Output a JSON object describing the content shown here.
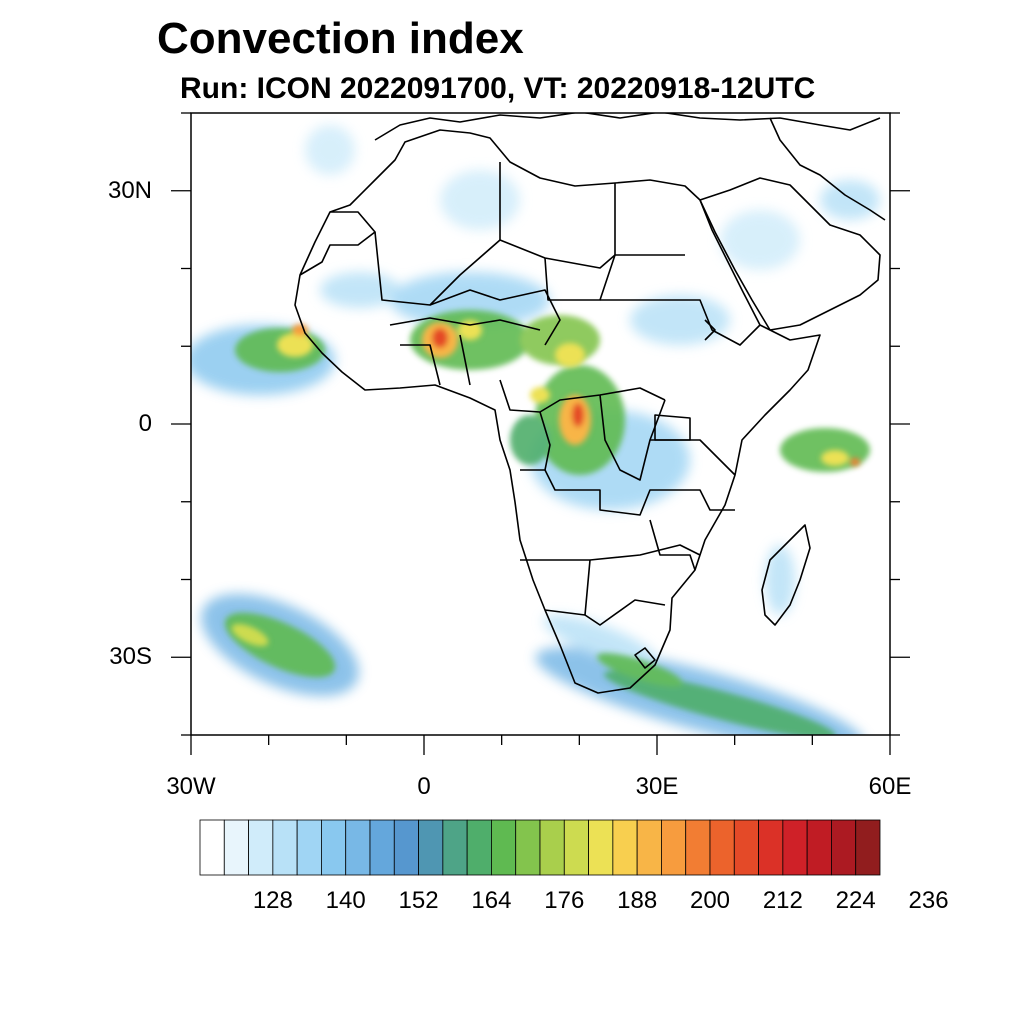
{
  "title": "Convection index",
  "subtitle": "Run: ICON 2022091700,  VT: 20220918-12UTC",
  "map": {
    "lon_range": [
      -30,
      60
    ],
    "lat_range": [
      -40,
      40
    ],
    "lon_ticks": [
      {
        "value": -30,
        "label": "30W"
      },
      {
        "value": 0,
        "label": "0"
      },
      {
        "value": 30,
        "label": "30E"
      },
      {
        "value": 60,
        "label": "60E"
      }
    ],
    "lat_ticks": [
      {
        "value": 30,
        "label": "30N"
      },
      {
        "value": 0,
        "label": "0"
      },
      {
        "value": -30,
        "label": "30S"
      }
    ]
  },
  "colorbar": {
    "colors": [
      "#ffffff",
      "#e8f5fc",
      "#d0ecfa",
      "#b8e1f7",
      "#a0d5f4",
      "#89c8ef",
      "#78b8e6",
      "#64a7dc",
      "#5697cf",
      "#4f96b2",
      "#4ea487",
      "#4fae6b",
      "#5fba51",
      "#83c44d",
      "#a9cf4c",
      "#cddb50",
      "#ece155",
      "#f8cf4f",
      "#f8b547",
      "#f79c3e",
      "#f27d33",
      "#ec632c",
      "#e44a28",
      "#db3127",
      "#cf2128",
      "#c01c24",
      "#ac1a22",
      "#911d1e"
    ],
    "labels": [
      "128",
      "140",
      "152",
      "164",
      "176",
      "188",
      "200",
      "212",
      "224",
      "236"
    ]
  }
}
